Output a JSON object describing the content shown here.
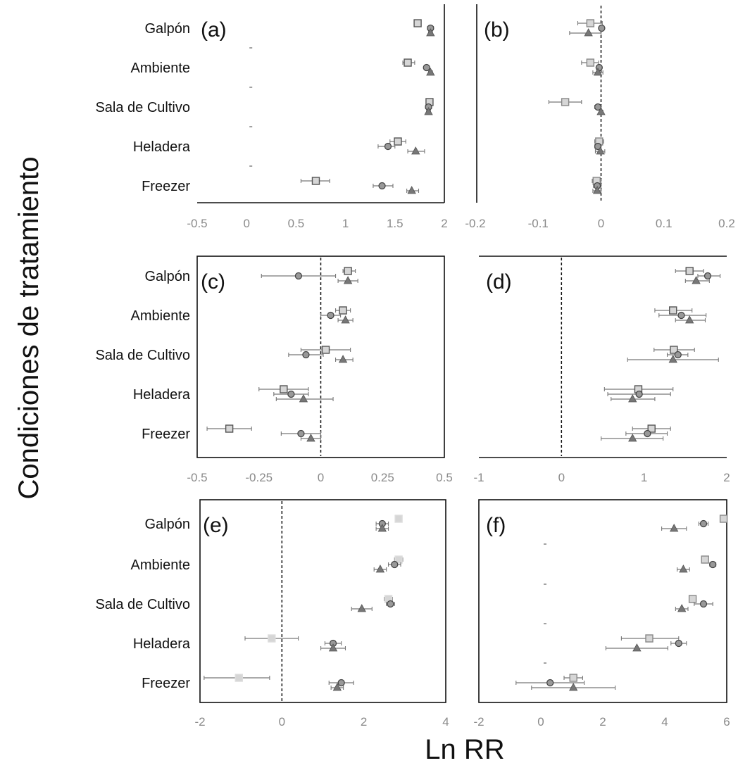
{
  "figure": {
    "ylabel": "Condiciones de tratamiento",
    "xlabel": "Ln RR"
  },
  "chart_data": [
    {
      "type": "scatter",
      "panel_label": "(a)",
      "xlim": [
        -0.5,
        2
      ],
      "xticks": [
        "-0.5",
        "0",
        "0.5",
        "1",
        "1.5",
        "2"
      ],
      "categories": [
        "Galpón",
        "Ambiente",
        "Sala de Cultivo",
        "Heladera",
        "Freezer"
      ],
      "zero_line": false,
      "series": [
        {
          "marker": "square",
          "fill": "#d6d6d6",
          "stroke": "#555555",
          "values": [
            1.73,
            1.63,
            1.85,
            1.53,
            0.7
          ],
          "ci": [
            [
              1.7,
              1.76
            ],
            [
              1.58,
              1.7
            ],
            [
              1.82,
              1.88
            ],
            [
              1.45,
              1.61
            ],
            [
              0.55,
              0.84
            ]
          ]
        },
        {
          "marker": "circle",
          "fill": "#999999",
          "stroke": "#444444",
          "values": [
            1.86,
            1.82,
            1.84,
            1.43,
            1.37
          ],
          "ci": [
            [
              1.83,
              1.89
            ],
            [
              1.8,
              1.84
            ],
            [
              1.81,
              1.87
            ],
            [
              1.33,
              1.5
            ],
            [
              1.28,
              1.48
            ]
          ]
        },
        {
          "marker": "triangle",
          "fill": "#777777",
          "stroke": "#555555",
          "values": [
            1.86,
            1.86,
            1.84,
            1.71,
            1.67
          ],
          "ci": [
            [
              1.84,
              1.88
            ],
            [
              1.84,
              1.88
            ],
            [
              1.82,
              1.86
            ],
            [
              1.63,
              1.8
            ],
            [
              1.62,
              1.74
            ]
          ]
        }
      ]
    },
    {
      "type": "scatter",
      "panel_label": "(b)",
      "xlim": [
        -0.2,
        0.2
      ],
      "xticks": [
        "-0.2",
        "-0.1",
        "0",
        "0.1",
        "0.2"
      ],
      "categories": [
        "Galpón",
        "Ambiente",
        "Sala de Cultivo",
        "Heladera",
        "Freezer"
      ],
      "zero_line": true,
      "series": [
        {
          "marker": "square",
          "fill": "#d6d6d6",
          "stroke": "#888888",
          "values": [
            -0.017,
            -0.017,
            -0.057,
            -0.003,
            -0.007
          ],
          "ci": [
            [
              -0.037,
              0.002
            ],
            [
              -0.031,
              -0.004
            ],
            [
              -0.083,
              -0.031
            ],
            [
              -0.01,
              0.004
            ],
            [
              -0.014,
              0.0
            ]
          ]
        },
        {
          "marker": "circle",
          "fill": "#999999",
          "stroke": "#444444",
          "values": [
            0.001,
            -0.003,
            -0.005,
            -0.005,
            -0.006
          ],
          "ci": [
            [
              0.0,
              0.002
            ],
            [
              -0.007,
              0.001
            ],
            [
              -0.01,
              0.0
            ],
            [
              -0.01,
              0.0
            ],
            [
              -0.012,
              0.0
            ]
          ]
        },
        {
          "marker": "triangle",
          "fill": "#777777",
          "stroke": "#555555",
          "values": [
            -0.02,
            -0.005,
            0.0,
            -0.001,
            -0.006
          ],
          "ci": [
            [
              -0.05,
              0.0
            ],
            [
              -0.013,
              0.003
            ],
            [
              -0.003,
              0.003
            ],
            [
              -0.009,
              0.006
            ],
            [
              -0.013,
              0.0
            ]
          ]
        }
      ]
    },
    {
      "type": "scatter",
      "panel_label": "(c)",
      "xlim": [
        -0.5,
        0.5
      ],
      "xticks": [
        "-0.5",
        "-0.25",
        "0",
        "0.25",
        "0.5"
      ],
      "categories": [
        "Galpón",
        "Ambiente",
        "Sala de Cultivo",
        "Heladera",
        "Freezer"
      ],
      "zero_line": true,
      "series": [
        {
          "marker": "square",
          "fill": "#d6d6d6",
          "stroke": "#555555",
          "values": [
            0.11,
            0.09,
            0.02,
            -0.15,
            -0.37
          ],
          "ci": [
            [
              0.09,
              0.14
            ],
            [
              0.06,
              0.12
            ],
            [
              -0.08,
              0.12
            ],
            [
              -0.25,
              -0.05
            ],
            [
              -0.46,
              -0.28
            ]
          ]
        },
        {
          "marker": "circle",
          "fill": "#999999",
          "stroke": "#444444",
          "values": [
            -0.09,
            0.04,
            -0.06,
            -0.12,
            -0.08
          ],
          "ci": [
            [
              -0.24,
              0.06
            ],
            [
              0.0,
              0.08
            ],
            [
              -0.13,
              0.01
            ],
            [
              -0.19,
              -0.05
            ],
            [
              -0.16,
              0.0
            ]
          ]
        },
        {
          "marker": "triangle",
          "fill": "#777777",
          "stroke": "#555555",
          "values": [
            0.11,
            0.1,
            0.09,
            -0.07,
            -0.04
          ],
          "ci": [
            [
              0.07,
              0.15
            ],
            [
              0.07,
              0.13
            ],
            [
              0.06,
              0.13
            ],
            [
              -0.18,
              0.05
            ],
            [
              -0.08,
              0.0
            ]
          ]
        }
      ]
    },
    {
      "type": "scatter",
      "panel_label": "(d)",
      "xlim": [
        -1,
        2
      ],
      "xticks": [
        "-1",
        "0",
        "1",
        "2"
      ],
      "categories": [
        "Galpón",
        "Ambiente",
        "Sala de Cultivo",
        "Heladera",
        "Freezer"
      ],
      "zero_line": true,
      "series": [
        {
          "marker": "square",
          "fill": "#d6d6d6",
          "stroke": "#555555",
          "values": [
            1.55,
            1.35,
            1.36,
            0.93,
            1.09
          ],
          "ci": [
            [
              1.38,
              1.72
            ],
            [
              1.13,
              1.58
            ],
            [
              1.12,
              1.61
            ],
            [
              0.52,
              1.35
            ],
            [
              0.86,
              1.32
            ]
          ]
        },
        {
          "marker": "circle",
          "fill": "#999999",
          "stroke": "#444444",
          "values": [
            1.77,
            1.45,
            1.41,
            0.94,
            1.04
          ],
          "ci": [
            [
              1.65,
              1.92
            ],
            [
              1.18,
              1.75
            ],
            [
              1.28,
              1.53
            ],
            [
              0.56,
              1.32
            ],
            [
              0.78,
              1.28
            ]
          ]
        },
        {
          "marker": "triangle",
          "fill": "#777777",
          "stroke": "#555555",
          "values": [
            1.63,
            1.55,
            1.35,
            0.86,
            0.86
          ],
          "ci": [
            [
              1.5,
              1.79
            ],
            [
              1.38,
              1.74
            ],
            [
              0.8,
              1.9
            ],
            [
              0.6,
              1.13
            ],
            [
              0.48,
              1.23
            ]
          ]
        }
      ]
    },
    {
      "type": "scatter",
      "panel_label": "(e)",
      "xlim": [
        -2,
        4
      ],
      "xticks": [
        "-2",
        "0",
        "2",
        "4"
      ],
      "categories": [
        "Galpón",
        "Ambiente",
        "Sala de Cultivo",
        "Heladera",
        "Freezer"
      ],
      "zero_line": true,
      "series": [
        {
          "marker": "square",
          "fill": "#d6d6d6",
          "stroke": "#dddddd",
          "values": [
            2.85,
            2.85,
            2.6,
            -0.25,
            -1.05
          ],
          "ci": [
            [
              2.8,
              2.9
            ],
            [
              2.75,
              2.95
            ],
            [
              2.5,
              2.7
            ],
            [
              -0.9,
              0.4
            ],
            [
              -1.9,
              -0.3
            ]
          ]
        },
        {
          "marker": "circle",
          "fill": "#999999",
          "stroke": "#444444",
          "values": [
            2.45,
            2.75,
            2.65,
            1.25,
            1.45
          ],
          "ci": [
            [
              2.3,
              2.6
            ],
            [
              2.6,
              2.9
            ],
            [
              2.55,
              2.75
            ],
            [
              1.05,
              1.45
            ],
            [
              1.15,
              1.75
            ]
          ]
        },
        {
          "marker": "triangle",
          "fill": "#777777",
          "stroke": "#555555",
          "values": [
            2.45,
            2.4,
            1.95,
            1.25,
            1.35
          ],
          "ci": [
            [
              2.3,
              2.6
            ],
            [
              2.25,
              2.55
            ],
            [
              1.7,
              2.2
            ],
            [
              0.95,
              1.55
            ],
            [
              1.2,
              1.5
            ]
          ]
        }
      ]
    },
    {
      "type": "scatter",
      "panel_label": "(f)",
      "xlim": [
        -2,
        6
      ],
      "xticks": [
        "-2",
        "0",
        "2",
        "4",
        "6"
      ],
      "categories": [
        "Galpón",
        "Ambiente",
        "Sala de Cultivo",
        "Heladera",
        "Freezer"
      ],
      "zero_line": false,
      "series": [
        {
          "marker": "square",
          "fill": "#d6d6d6",
          "stroke": "#888888",
          "values": [
            5.9,
            5.3,
            4.9,
            3.5,
            1.05
          ],
          "ci": [
            [
              5.85,
              5.95
            ],
            [
              5.2,
              5.4
            ],
            [
              4.8,
              5.0
            ],
            [
              2.6,
              4.45
            ],
            [
              0.75,
              1.35
            ]
          ]
        },
        {
          "marker": "circle",
          "fill": "#999999",
          "stroke": "#444444",
          "values": [
            5.25,
            5.55,
            5.25,
            4.45,
            0.3
          ],
          "ci": [
            [
              5.1,
              5.4
            ],
            [
              5.45,
              5.65
            ],
            [
              4.95,
              5.55
            ],
            [
              4.2,
              4.7
            ],
            [
              -0.8,
              1.4
            ]
          ]
        },
        {
          "marker": "triangle",
          "fill": "#777777",
          "stroke": "#555555",
          "values": [
            4.3,
            4.6,
            4.55,
            3.1,
            1.05
          ],
          "ci": [
            [
              3.9,
              4.7
            ],
            [
              4.4,
              4.8
            ],
            [
              4.35,
              4.75
            ],
            [
              2.1,
              4.1
            ],
            [
              -0.3,
              2.4
            ]
          ]
        }
      ]
    }
  ]
}
